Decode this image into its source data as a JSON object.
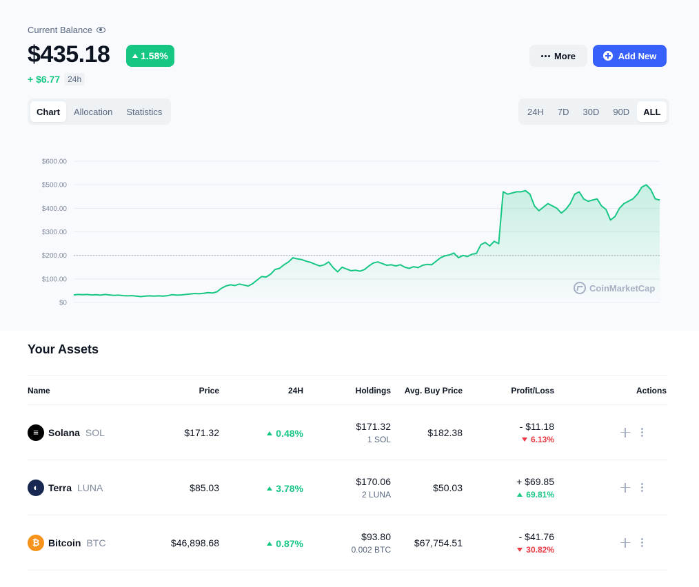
{
  "header": {
    "balance_label": "Current Balance",
    "balance": "$435.18",
    "change_pct": "1.58%",
    "change_abs": "+ $6.77",
    "change_period": "24h",
    "more_label": "More",
    "add_label": "Add New"
  },
  "view_tabs": [
    {
      "label": "Chart",
      "active": true
    },
    {
      "label": "Allocation",
      "active": false
    },
    {
      "label": "Statistics",
      "active": false
    }
  ],
  "range_tabs": [
    {
      "label": "24H",
      "active": false
    },
    {
      "label": "7D",
      "active": false
    },
    {
      "label": "30D",
      "active": false
    },
    {
      "label": "90D",
      "active": false
    },
    {
      "label": "ALL",
      "active": true
    }
  ],
  "chart_data": {
    "type": "area",
    "title": "",
    "xlabel": "",
    "ylabel": "",
    "ylim": [
      0,
      600
    ],
    "yticks": [
      "$0",
      "$100.00",
      "$200.00",
      "$300.00",
      "$400.00",
      "$500.00",
      "$600.00"
    ],
    "reference_line": 200,
    "grid": true,
    "color": "#16c784",
    "values": [
      32,
      34,
      33,
      34,
      32,
      33,
      31,
      34,
      32,
      30,
      31,
      29,
      28,
      29,
      27,
      25,
      27,
      28,
      27,
      28,
      27,
      29,
      33,
      31,
      32,
      34,
      36,
      38,
      37,
      39,
      42,
      40,
      45,
      60,
      70,
      75,
      72,
      78,
      74,
      70,
      80,
      95,
      110,
      108,
      120,
      140,
      145,
      160,
      172,
      190,
      185,
      182,
      175,
      170,
      162,
      155,
      160,
      172,
      148,
      130,
      150,
      142,
      135,
      137,
      133,
      140,
      155,
      168,
      172,
      165,
      158,
      160,
      155,
      160,
      150,
      145,
      152,
      148,
      158,
      162,
      160,
      175,
      190,
      198,
      202,
      210,
      190,
      200,
      195,
      205,
      208,
      245,
      255,
      240,
      260,
      250,
      470,
      460,
      465,
      470,
      470,
      475,
      460,
      410,
      390,
      405,
      420,
      410,
      400,
      380,
      395,
      420,
      460,
      470,
      440,
      430,
      435,
      440,
      410,
      395,
      350,
      365,
      400,
      420,
      430,
      440,
      460,
      490,
      500,
      480,
      440,
      435
    ]
  },
  "watermark": "CoinMarketCap",
  "assets": {
    "title": "Your Assets",
    "columns": [
      "Name",
      "Price",
      "24H",
      "Holdings",
      "Avg. Buy Price",
      "Profit/Loss",
      "Actions"
    ],
    "rows": [
      {
        "name": "Solana",
        "symbol": "SOL",
        "icon": "solana-icon",
        "icon_color": "#000000",
        "price": "$171.32",
        "change": "0.48%",
        "change_dir": "up",
        "holdings_value": "$171.32",
        "holdings_qty": "1 SOL",
        "avg_buy": "$182.38",
        "pl_value": "- $11.18",
        "pl_pct": "6.13%",
        "pl_dir": "down"
      },
      {
        "name": "Terra",
        "symbol": "LUNA",
        "icon": "terra-icon",
        "icon_color": "#172852",
        "price": "$85.03",
        "change": "3.78%",
        "change_dir": "up",
        "holdings_value": "$170.06",
        "holdings_qty": "2 LUNA",
        "avg_buy": "$50.03",
        "pl_value": "+ $69.85",
        "pl_pct": "69.81%",
        "pl_dir": "up"
      },
      {
        "name": "Bitcoin",
        "symbol": "BTC",
        "icon": "bitcoin-icon",
        "icon_color": "#f7931a",
        "price": "$46,898.68",
        "change": "0.87%",
        "change_dir": "up",
        "holdings_value": "$93.80",
        "holdings_qty": "0.002 BTC",
        "avg_buy": "$67,754.51",
        "pl_value": "- $41.76",
        "pl_pct": "30.82%",
        "pl_dir": "down"
      }
    ]
  }
}
